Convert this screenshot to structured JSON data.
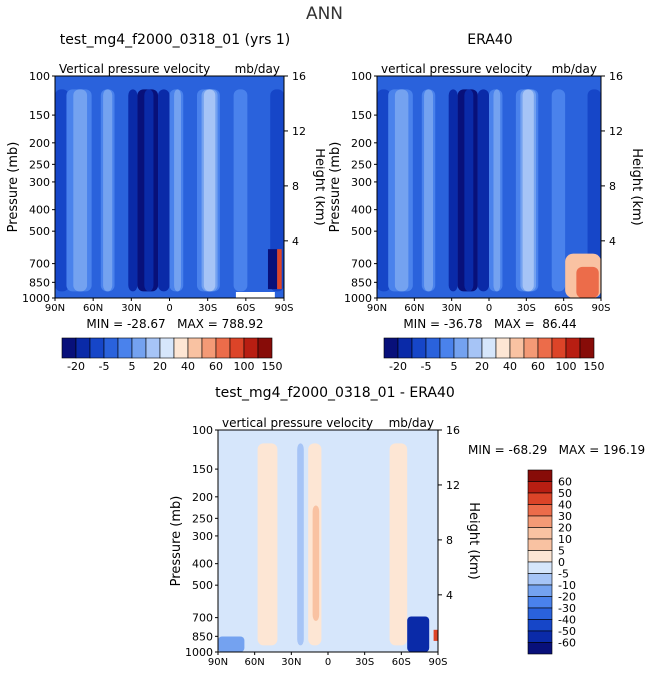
{
  "page": {
    "title": "ANN"
  },
  "colors": {
    "palette": [
      "#08107a",
      "#0a2aa8",
      "#1646c8",
      "#2a62dc",
      "#4a82ec",
      "#74a2f0",
      "#a6c4f6",
      "#d6e6fb",
      "#fde6d4",
      "#f9c2a2",
      "#f49a76",
      "#ec6c4a",
      "#dc4428",
      "#b81e12",
      "#870c08"
    ]
  },
  "chart_data": [
    {
      "type": "heatmap",
      "title": "test_mg4_f2000_0318_01 (yrs 1)",
      "subtitle_left": "Vertical pressure velocity",
      "subtitle_right": "mb/day",
      "ylabel": "Pressure (mb)",
      "ylabel_right": "Height (km)",
      "x_ticks": [
        "90N",
        "60N",
        "30N",
        "0",
        "30S",
        "60S",
        "90S"
      ],
      "y_ticks": [
        "100",
        "150",
        "200",
        "250",
        "300",
        "400",
        "500",
        "700",
        "850",
        "1000"
      ],
      "y_right_ticks": [
        "16",
        "12",
        "8",
        "4"
      ],
      "ylim": [
        1000,
        100
      ],
      "stats": "MIN = -28.67   MAX = 788.92"
    },
    {
      "type": "heatmap",
      "title": "ERA40",
      "subtitle_left": "vertical pressure velocity",
      "subtitle_right": "mb/day",
      "ylabel": "Pressure (mb)",
      "ylabel_right": "Height (km)",
      "x_ticks": [
        "90N",
        "60N",
        "30N",
        "0",
        "30S",
        "60S",
        "90S"
      ],
      "y_ticks": [
        "100",
        "150",
        "200",
        "250",
        "300",
        "400",
        "500",
        "700",
        "850",
        "1000"
      ],
      "y_right_ticks": [
        "16",
        "12",
        "8",
        "4"
      ],
      "ylim": [
        1000,
        100
      ],
      "stats": "MIN = -36.78   MAX =  86.44"
    },
    {
      "type": "heatmap",
      "title": "test_mg4_f2000_0318_01 - ERA40",
      "subtitle_left": "vertical pressure velocity",
      "subtitle_right": "mb/day",
      "ylabel": "Pressure (mb)",
      "ylabel_right": "Height (km)",
      "x_ticks": [
        "90N",
        "60N",
        "30N",
        "0",
        "30S",
        "60S",
        "90S"
      ],
      "y_ticks": [
        "100",
        "150",
        "200",
        "250",
        "300",
        "400",
        "500",
        "700",
        "850",
        "1000"
      ],
      "y_right_ticks": [
        "16",
        "12",
        "8",
        "4"
      ],
      "ylim": [
        1000,
        100
      ],
      "stats": "MIN = -68.29   MAX = 196.19"
    }
  ],
  "colorbars": {
    "top": {
      "labels": [
        "-20",
        "-5",
        "5",
        "20",
        "40",
        "60",
        "100",
        "150"
      ]
    },
    "diff": {
      "labels": [
        "60",
        "50",
        "40",
        "30",
        "20",
        "10",
        "5",
        "0",
        "-5",
        "-10",
        "-20",
        "-30",
        "-40",
        "-50",
        "-60"
      ]
    }
  }
}
